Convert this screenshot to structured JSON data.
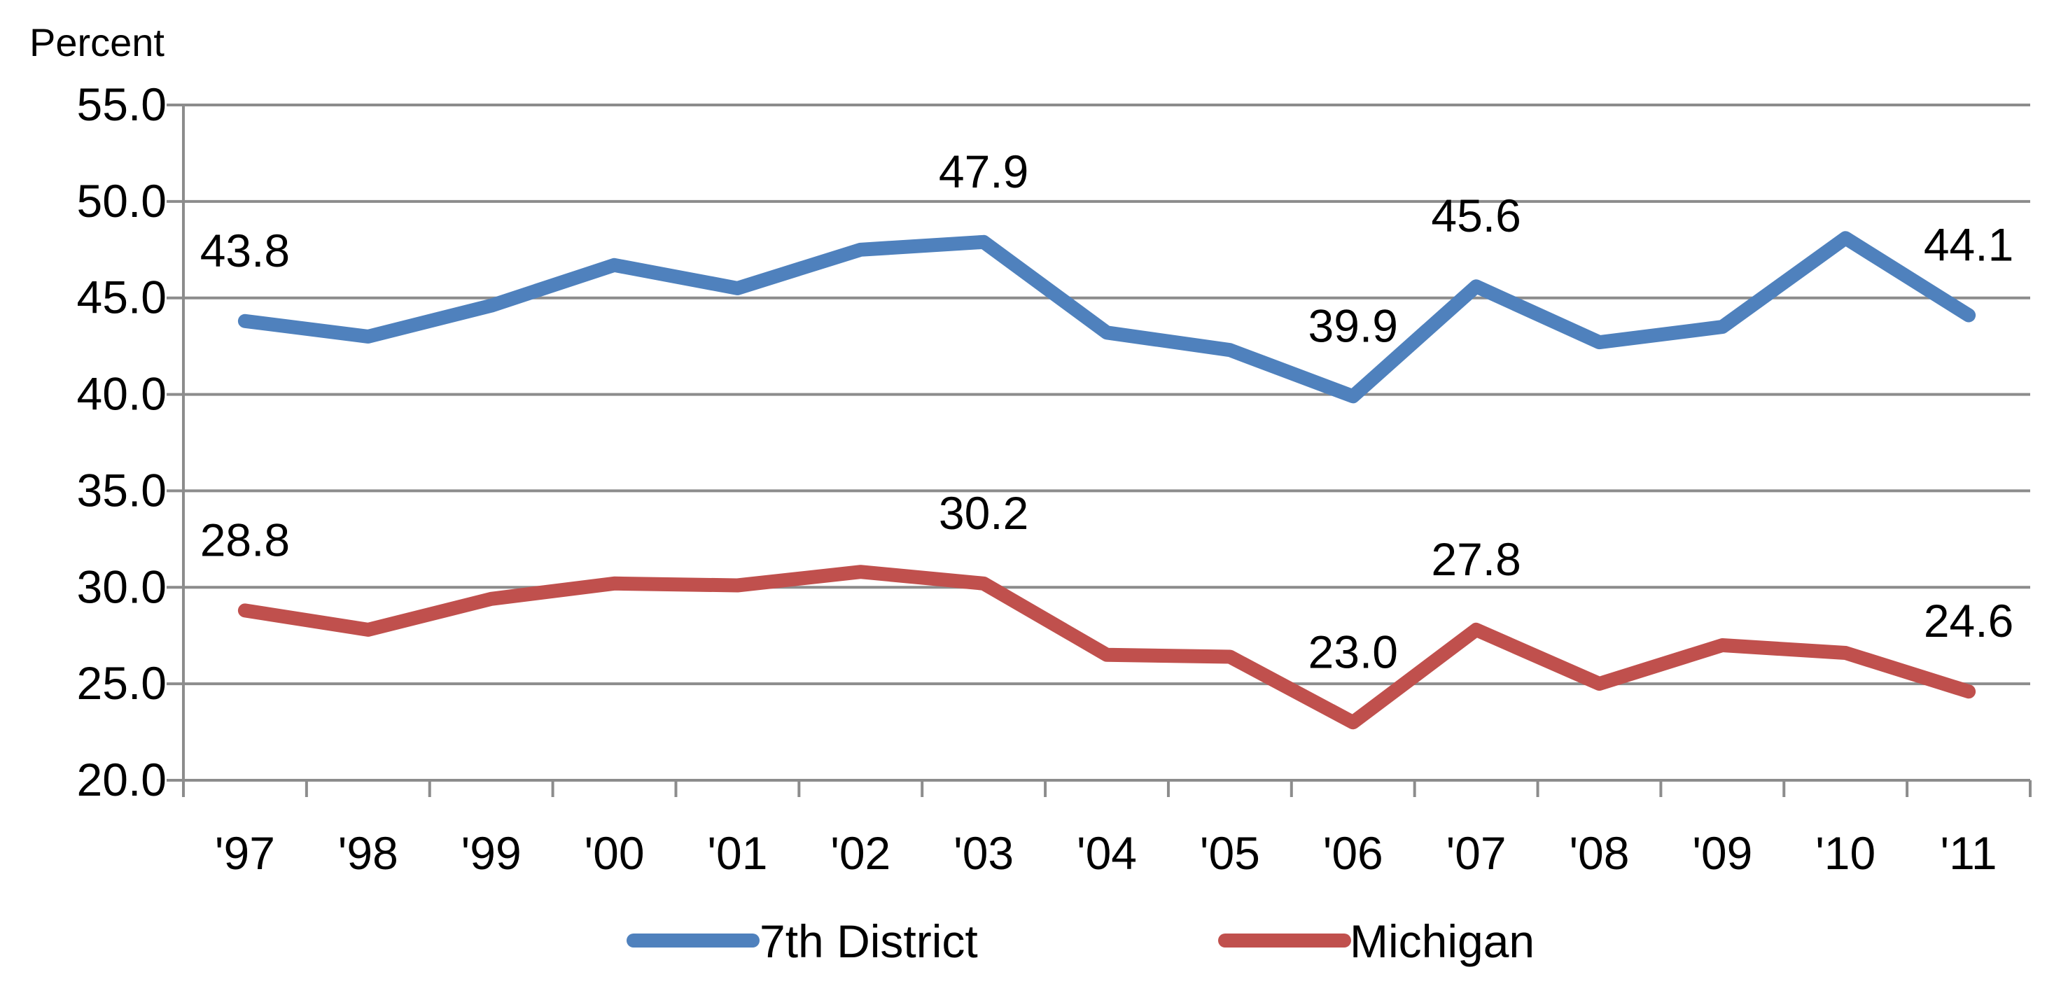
{
  "chart_data": {
    "type": "line",
    "ylabel": "Percent",
    "ylim": [
      20,
      55
    ],
    "yticks": [
      "20.0",
      "25.0",
      "30.0",
      "35.0",
      "40.0",
      "45.0",
      "50.0",
      "55.0"
    ],
    "grid": true,
    "legend_position": "bottom",
    "categories": [
      "'97",
      "'98",
      "'99",
      "'00",
      "'01",
      "'02",
      "'03",
      "'04",
      "'05",
      "'06",
      "'07",
      "'08",
      "'09",
      "'10",
      "'11"
    ],
    "series": [
      {
        "name": "7th District",
        "color": "#4F81BD",
        "values": [
          43.8,
          43.0,
          44.6,
          46.7,
          45.5,
          47.5,
          47.9,
          43.2,
          42.3,
          39.9,
          45.6,
          42.7,
          43.5,
          48.1,
          44.1
        ],
        "labels": [
          {
            "index": 0,
            "text": "43.8"
          },
          {
            "index": 6,
            "text": "47.9"
          },
          {
            "index": 9,
            "text": "39.9"
          },
          {
            "index": 10,
            "text": "45.6"
          },
          {
            "index": 14,
            "text": "44.1"
          }
        ]
      },
      {
        "name": "Michigan",
        "color": "#C0504D",
        "values": [
          28.8,
          27.8,
          29.4,
          30.2,
          30.1,
          30.8,
          30.2,
          26.5,
          26.4,
          23.0,
          27.8,
          25.0,
          27.0,
          26.6,
          24.6
        ],
        "labels": [
          {
            "index": 0,
            "text": "28.8"
          },
          {
            "index": 6,
            "text": "30.2"
          },
          {
            "index": 9,
            "text": "23.0"
          },
          {
            "index": 10,
            "text": "27.8"
          },
          {
            "index": 14,
            "text": "24.6"
          }
        ]
      }
    ]
  }
}
